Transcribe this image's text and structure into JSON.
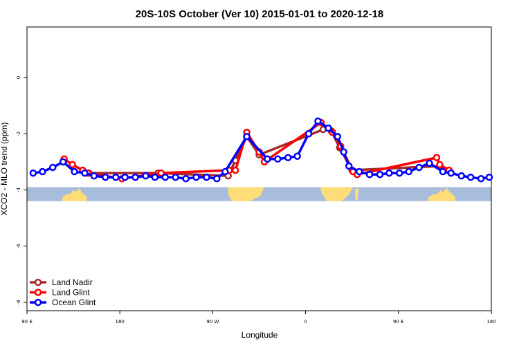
{
  "chart_data": {
    "type": "line",
    "title": "20S-10S October (Ver 10)   2015-01-01 to 2020-12-18",
    "xlabel": "Longitude",
    "ylabel": "XCO2 - MLO trend (ppm)",
    "xlim": [
      90,
      540
    ],
    "ylim": [
      -8.3,
      1.8
    ],
    "x_ticks": [
      {
        "value": 90,
        "label": "90 E"
      },
      {
        "value": 180,
        "label": "180"
      },
      {
        "value": 270,
        "label": "90 W"
      },
      {
        "value": 360,
        "label": "0"
      },
      {
        "value": 450,
        "label": "90 E"
      },
      {
        "value": 540,
        "label": "180"
      }
    ],
    "y_ticks": [
      {
        "value": 0,
        "label": "0"
      },
      {
        "value": -2,
        "label": "-2"
      },
      {
        "value": -4,
        "label": "-4"
      },
      {
        "value": -6,
        "label": "-6"
      },
      {
        "value": -8,
        "label": "-8"
      }
    ],
    "grid": false,
    "legend_position": "bottom-left",
    "land_ocean_band": {
      "y_range": [
        -4.4,
        -3.9
      ],
      "ocean_color": "#a8bcdc",
      "land_color": "#fedd79",
      "land_segments": [
        {
          "x": [
            124,
            148
          ],
          "shape": "australia"
        },
        {
          "x": [
            285,
            320
          ],
          "shape": "south-america"
        },
        {
          "x": [
            374,
            406
          ],
          "shape": "africa"
        },
        {
          "x": [
            408,
            410
          ],
          "shape": "madagascar"
        },
        {
          "x": [
            479,
            505
          ],
          "shape": "australia"
        }
      ]
    },
    "series": [
      {
        "name": "Land Nadir",
        "color": "#a52a2a",
        "points": [
          {
            "x": 150,
            "y": -3.4
          },
          {
            "x": 217,
            "y": -3.4
          },
          {
            "x": 285,
            "y": -3.5
          },
          {
            "x": 292,
            "y": -2.95
          },
          {
            "x": 303,
            "y": -2.1
          },
          {
            "x": 315,
            "y": -2.75
          },
          {
            "x": 377,
            "y": -1.85
          },
          {
            "x": 385,
            "y": -1.9
          },
          {
            "x": 393,
            "y": -2.5
          },
          {
            "x": 405,
            "y": -3.3
          },
          {
            "x": 490,
            "y": -3.15
          },
          {
            "x": 500,
            "y": -3.35
          }
        ]
      },
      {
        "name": "Land Glint",
        "color": "#ff0000",
        "points": [
          {
            "x": 126,
            "y": -2.9
          },
          {
            "x": 134,
            "y": -3.1
          },
          {
            "x": 144,
            "y": -3.3
          },
          {
            "x": 149,
            "y": -3.4
          },
          {
            "x": 182,
            "y": -3.6
          },
          {
            "x": 220,
            "y": -3.4
          },
          {
            "x": 286,
            "y": -3.3
          },
          {
            "x": 292,
            "y": -3.3
          },
          {
            "x": 303,
            "y": -1.95
          },
          {
            "x": 315,
            "y": -2.65
          },
          {
            "x": 320,
            "y": -3.0
          },
          {
            "x": 375,
            "y": -1.6
          },
          {
            "x": 386,
            "y": -1.95
          },
          {
            "x": 394,
            "y": -2.45
          },
          {
            "x": 406,
            "y": -3.35
          },
          {
            "x": 410,
            "y": -3.45
          },
          {
            "x": 487,
            "y": -2.85
          },
          {
            "x": 490,
            "y": -3.1
          },
          {
            "x": 499,
            "y": -3.3
          }
        ]
      },
      {
        "name": "Ocean Glint",
        "color": "#0000ff",
        "points": [
          {
            "x": 96,
            "y": -3.4
          },
          {
            "x": 105,
            "y": -3.35
          },
          {
            "x": 115,
            "y": -3.2
          },
          {
            "x": 125,
            "y": -3.0
          },
          {
            "x": 136,
            "y": -3.35
          },
          {
            "x": 146,
            "y": -3.4
          },
          {
            "x": 155,
            "y": -3.5
          },
          {
            "x": 166,
            "y": -3.55
          },
          {
            "x": 176,
            "y": -3.55
          },
          {
            "x": 185,
            "y": -3.55
          },
          {
            "x": 195,
            "y": -3.55
          },
          {
            "x": 205,
            "y": -3.5
          },
          {
            "x": 214,
            "y": -3.55
          },
          {
            "x": 224,
            "y": -3.55
          },
          {
            "x": 234,
            "y": -3.55
          },
          {
            "x": 244,
            "y": -3.6
          },
          {
            "x": 254,
            "y": -3.55
          },
          {
            "x": 264,
            "y": -3.55
          },
          {
            "x": 274,
            "y": -3.6
          },
          {
            "x": 282,
            "y": -3.35
          },
          {
            "x": 303,
            "y": -2.1
          },
          {
            "x": 323,
            "y": -2.9
          },
          {
            "x": 333,
            "y": -2.9
          },
          {
            "x": 343,
            "y": -2.85
          },
          {
            "x": 352,
            "y": -2.8
          },
          {
            "x": 363,
            "y": -2.0
          },
          {
            "x": 372,
            "y": -1.55
          },
          {
            "x": 382,
            "y": -1.8
          },
          {
            "x": 391,
            "y": -2.1
          },
          {
            "x": 397,
            "y": -2.65
          },
          {
            "x": 402,
            "y": -3.15
          },
          {
            "x": 412,
            "y": -3.35
          },
          {
            "x": 422,
            "y": -3.45
          },
          {
            "x": 432,
            "y": -3.45
          },
          {
            "x": 441,
            "y": -3.4
          },
          {
            "x": 451,
            "y": -3.4
          },
          {
            "x": 460,
            "y": -3.35
          },
          {
            "x": 470,
            "y": -3.2
          },
          {
            "x": 480,
            "y": -3.05
          },
          {
            "x": 493,
            "y": -3.35
          },
          {
            "x": 501,
            "y": -3.4
          },
          {
            "x": 511,
            "y": -3.5
          },
          {
            "x": 520,
            "y": -3.55
          },
          {
            "x": 530,
            "y": -3.6
          },
          {
            "x": 538,
            "y": -3.55
          }
        ]
      }
    ]
  }
}
